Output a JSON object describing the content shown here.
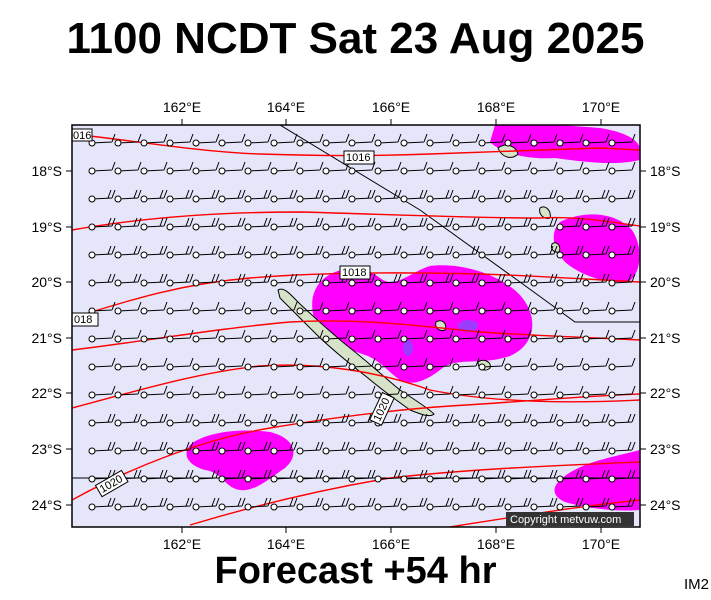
{
  "title": "1100 NCDT Sat 23 Aug 2025",
  "footer": "Forecast +54 hr",
  "image_tag": "IM2",
  "copyright": "Copyright metvuw.com",
  "colors": {
    "ocean": "#e6e6fa",
    "precip_heavy": "#ff00ff",
    "precip_core": "#9b3cff",
    "isobar": "#ff0000",
    "land": "#d7e3c8"
  },
  "map": {
    "lon_range": [
      160.0,
      171.0
    ],
    "lat_range": [
      -24.4,
      -17.0
    ],
    "lon_ticks": [
      "162°E",
      "164°E",
      "166°E",
      "168°E",
      "170°E"
    ],
    "lat_ticks": [
      "18°S",
      "19°S",
      "20°S",
      "21°S",
      "22°S",
      "23°S",
      "24°S"
    ],
    "isobar_labels": [
      "016",
      "1016",
      "1018",
      "018",
      "1020",
      "1020"
    ]
  }
}
